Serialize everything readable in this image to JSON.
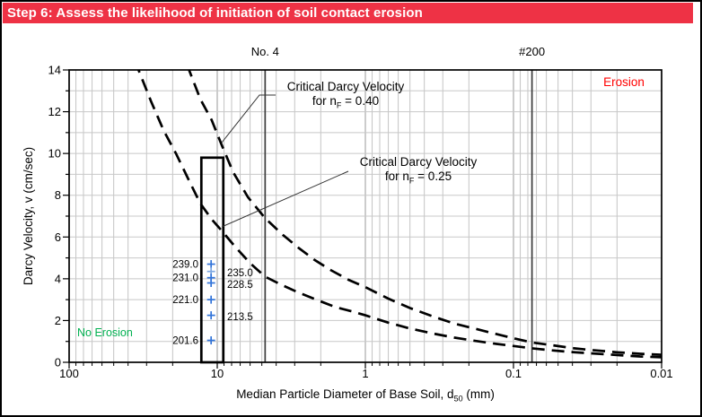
{
  "header": {
    "title": "Step 6: Assess the likelihood of initiation of soil contact erosion",
    "bg_color": "#EE3245",
    "text_color": "#FFFFFF"
  },
  "chart_data": {
    "type": "line",
    "x_scale": "log_reversed",
    "grid": true,
    "xlim": [
      100,
      0.01
    ],
    "ylim": [
      0,
      14
    ],
    "xlabel_parts": {
      "pre": "Median Particle Diameter of Base Soil, d",
      "sub": "50",
      "post": " (mm)"
    },
    "ylabel": "Darcy Velocity, v (cm/sec)",
    "x_tick_labels": [
      "100",
      "10",
      "1",
      "0.1",
      "0.01"
    ],
    "x_tick_values": [
      100,
      10,
      1,
      0.1,
      0.01
    ],
    "y_tick_values": [
      0,
      2,
      4,
      6,
      8,
      10,
      12,
      14
    ],
    "sieve_lines": [
      {
        "label": "No. 4",
        "d_mm": 4.75
      },
      {
        "label": "#200",
        "d_mm": 0.075
      }
    ],
    "series": [
      {
        "name": "Critical Darcy Velocity for nF = 0.40",
        "line_style": "dashed",
        "color": "#000000",
        "points_d_v": [
          [
            20,
            17
          ],
          [
            15.5,
            14
          ],
          [
            13,
            12.6
          ],
          [
            10.9,
            11.6
          ],
          [
            9.33,
            10.4
          ],
          [
            7.8,
            9.1
          ],
          [
            6.2,
            7.9
          ],
          [
            4.75,
            6.9
          ],
          [
            3.6,
            6.1
          ],
          [
            2.85,
            5.5
          ],
          [
            2.2,
            4.9
          ],
          [
            1.7,
            4.4
          ],
          [
            1.3,
            3.95
          ],
          [
            1.0,
            3.6
          ],
          [
            0.7,
            3.05
          ],
          [
            0.5,
            2.6
          ],
          [
            0.35,
            2.2
          ],
          [
            0.25,
            1.85
          ],
          [
            0.18,
            1.6
          ],
          [
            0.13,
            1.35
          ],
          [
            0.1,
            1.15
          ],
          [
            0.075,
            0.95
          ],
          [
            0.055,
            0.82
          ],
          [
            0.04,
            0.68
          ],
          [
            0.03,
            0.59
          ],
          [
            0.02,
            0.48
          ],
          [
            0.014,
            0.41
          ],
          [
            0.01,
            0.36
          ]
        ]
      },
      {
        "name": "Critical Darcy Velocity for nF = 0.25",
        "line_style": "dashed",
        "color": "#000000",
        "points_d_v": [
          [
            40,
            16.3
          ],
          [
            34,
            14
          ],
          [
            28,
            12.5
          ],
          [
            23,
            11.1
          ],
          [
            19,
            10.0
          ],
          [
            15.5,
            8.7
          ],
          [
            13,
            7.6
          ],
          [
            10.9,
            6.85
          ],
          [
            9.33,
            6.3
          ],
          [
            7.5,
            5.5
          ],
          [
            6,
            4.75
          ],
          [
            4.75,
            4.1
          ],
          [
            3.66,
            3.7
          ],
          [
            2.85,
            3.35
          ],
          [
            2.15,
            3.0
          ],
          [
            1.6,
            2.65
          ],
          [
            1.18,
            2.4
          ],
          [
            1.0,
            2.25
          ],
          [
            0.7,
            1.9
          ],
          [
            0.5,
            1.62
          ],
          [
            0.35,
            1.38
          ],
          [
            0.25,
            1.18
          ],
          [
            0.18,
            1.02
          ],
          [
            0.13,
            0.88
          ],
          [
            0.1,
            0.78
          ],
          [
            0.075,
            0.67
          ],
          [
            0.055,
            0.57
          ],
          [
            0.04,
            0.49
          ],
          [
            0.03,
            0.43
          ],
          [
            0.02,
            0.35
          ],
          [
            0.014,
            0.28
          ],
          [
            0.01,
            0.24
          ]
        ]
      }
    ],
    "base_soil_box": {
      "d_left_mm": 12.8,
      "d_right_mm": 9.1,
      "v_top": 9.8,
      "v_bottom": 0
    },
    "stations": {
      "d_mm": 11,
      "marker": "+",
      "color": "#3274D9",
      "muted_color": "#7FA9E2",
      "points": [
        {
          "label": "239.0",
          "v": 4.7,
          "label_side": "left"
        },
        {
          "label": "235.0",
          "v": 4.35,
          "label_side": "right",
          "muted": true
        },
        {
          "label": "231.0",
          "v": 4.05,
          "label_side": "left"
        },
        {
          "label": "228.5",
          "v": 3.8,
          "label_side": "right"
        },
        {
          "label": "221.0",
          "v": 3.0,
          "label_side": "left"
        },
        {
          "label": "213.5",
          "v": 2.25,
          "label_side": "right"
        },
        {
          "label": "201.6",
          "v": 1.05,
          "label_side": "left"
        }
      ]
    },
    "annotations": {
      "n040": {
        "line1": "Critical Darcy Velocity",
        "line2_pre": "for n",
        "line2_sub": "F",
        "line2_post": " = 0.40"
      },
      "n025": {
        "line1": "Critical Darcy Velocity",
        "line2_pre": "for n",
        "line2_sub": "F",
        "line2_post": " = 0.25"
      }
    },
    "region_labels": {
      "erosion": {
        "text": "Erosion",
        "color": "#FF0000",
        "position": "top-right"
      },
      "no_erosion": {
        "text": "No Erosion",
        "color": "#00B050",
        "position": "bottom-left"
      }
    }
  }
}
